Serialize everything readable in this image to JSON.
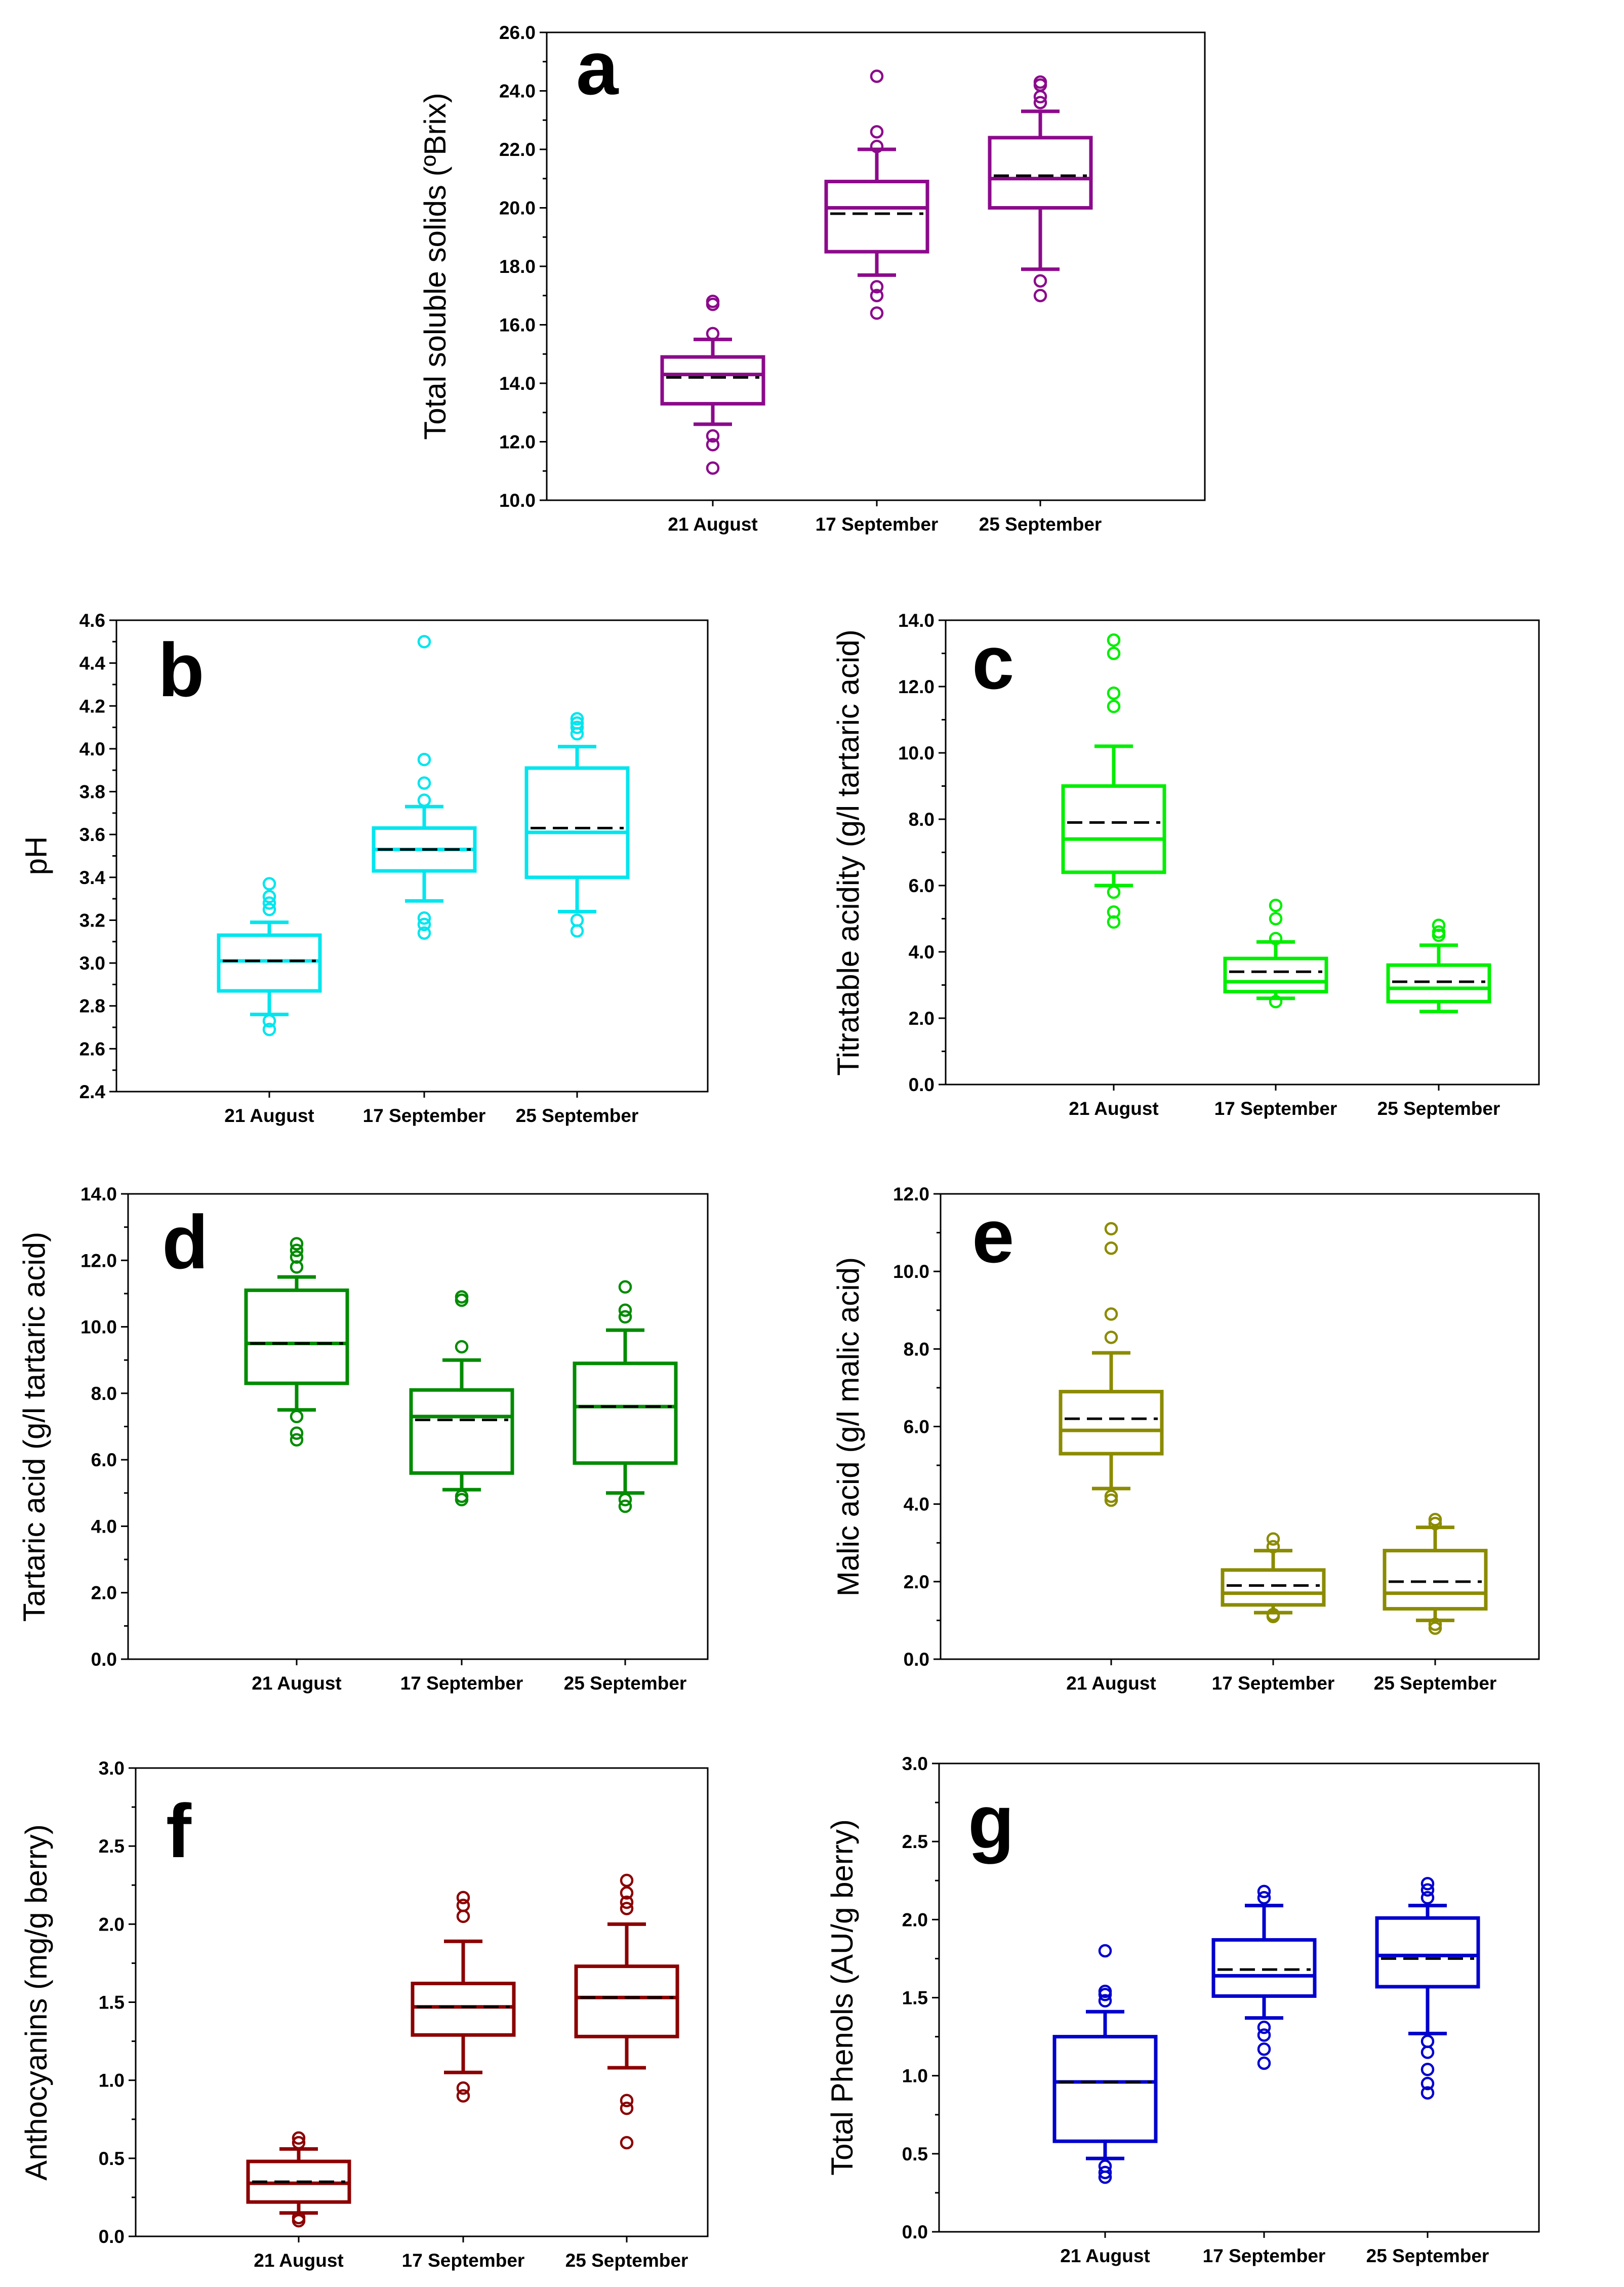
{
  "chart_data": [
    {
      "type": "box",
      "panel": "a",
      "ylabel": "Total soluble solids (ºBrix)",
      "color": "#8B0A8B",
      "ylim": [
        10,
        26
      ],
      "yticks": [
        "10.0",
        "12.0",
        "14.0",
        "16.0",
        "18.0",
        "20.0",
        "22.0",
        "24.0",
        "26.0"
      ],
      "categories": [
        "21 August",
        "17 September",
        "25 September"
      ],
      "boxes": [
        {
          "whisker_low": 12.6,
          "q1": 13.3,
          "median": 14.3,
          "mean": 14.2,
          "q3": 14.9,
          "whisker_high": 15.5,
          "outliers": [
            11.1,
            11.9,
            12.2,
            15.7,
            16.7,
            16.8
          ]
        },
        {
          "whisker_low": 17.7,
          "q1": 18.5,
          "median": 20.0,
          "mean": 19.8,
          "q3": 20.9,
          "whisker_high": 22.0,
          "outliers": [
            16.4,
            17.0,
            17.3,
            22.1,
            22.6,
            24.5
          ]
        },
        {
          "whisker_low": 17.9,
          "q1": 20.0,
          "median": 21.0,
          "mean": 21.1,
          "q3": 22.4,
          "whisker_high": 23.3,
          "outliers": [
            17.0,
            17.5,
            23.6,
            23.8,
            24.2,
            24.3
          ]
        }
      ]
    },
    {
      "type": "box",
      "panel": "b",
      "ylabel": "pH",
      "color": "#00E5EE",
      "ylim": [
        2.4,
        4.6
      ],
      "yticks": [
        "2.4",
        "2.6",
        "2.8",
        "3.0",
        "3.2",
        "3.4",
        "3.6",
        "3.8",
        "4.0",
        "4.2",
        "4.4",
        "4.6"
      ],
      "categories": [
        "21 August",
        "17 September",
        "25 September"
      ],
      "boxes": [
        {
          "whisker_low": 2.76,
          "q1": 2.87,
          "median": 3.01,
          "mean": 3.01,
          "q3": 3.13,
          "whisker_high": 3.19,
          "outliers": [
            2.69,
            2.73,
            3.25,
            3.28,
            3.31,
            3.37
          ]
        },
        {
          "whisker_low": 3.29,
          "q1": 3.43,
          "median": 3.53,
          "mean": 3.53,
          "q3": 3.63,
          "whisker_high": 3.73,
          "outliers": [
            3.14,
            3.18,
            3.21,
            3.76,
            3.84,
            3.95,
            4.5
          ]
        },
        {
          "whisker_low": 3.24,
          "q1": 3.4,
          "median": 3.61,
          "mean": 3.63,
          "q3": 3.91,
          "whisker_high": 4.01,
          "outliers": [
            3.15,
            3.2,
            4.07,
            4.1,
            4.12,
            4.14
          ]
        }
      ]
    },
    {
      "type": "box",
      "panel": "c",
      "ylabel": "Titratable acidity (g/l tartaric acid)",
      "color": "#00EE00",
      "ylim": [
        0,
        14
      ],
      "yticks": [
        "0.0",
        "2.0",
        "4.0",
        "6.0",
        "8.0",
        "10.0",
        "12.0",
        "14.0"
      ],
      "categories": [
        "21 August",
        "17 September",
        "25 September"
      ],
      "boxes": [
        {
          "whisker_low": 6.0,
          "q1": 6.4,
          "median": 7.4,
          "mean": 7.9,
          "q3": 9.0,
          "whisker_high": 10.2,
          "outliers": [
            4.9,
            5.2,
            5.8,
            11.4,
            11.8,
            13.0,
            13.4
          ]
        },
        {
          "whisker_low": 2.6,
          "q1": 2.8,
          "median": 3.1,
          "mean": 3.4,
          "q3": 3.8,
          "whisker_high": 4.3,
          "outliers": [
            2.5,
            4.4,
            5.0,
            5.4
          ]
        },
        {
          "whisker_low": 2.2,
          "q1": 2.5,
          "median": 2.9,
          "mean": 3.1,
          "q3": 3.6,
          "whisker_high": 4.2,
          "outliers": [
            4.5,
            4.6,
            4.8
          ]
        }
      ]
    },
    {
      "type": "box",
      "panel": "d",
      "ylabel": "Tartaric acid (g/l tartaric acid)",
      "color": "#008B00",
      "ylim": [
        0,
        14
      ],
      "yticks": [
        "0.0",
        "2.0",
        "4.0",
        "6.0",
        "8.0",
        "10.0",
        "12.0",
        "14.0"
      ],
      "categories": [
        "21 August",
        "17 September",
        "25 September"
      ],
      "boxes": [
        {
          "whisker_low": 7.5,
          "q1": 8.3,
          "median": 9.5,
          "mean": 9.5,
          "q3": 11.1,
          "whisker_high": 11.5,
          "outliers": [
            6.6,
            6.8,
            7.3,
            11.8,
            12.1,
            12.3,
            12.5
          ]
        },
        {
          "whisker_low": 5.1,
          "q1": 5.6,
          "median": 7.3,
          "mean": 7.2,
          "q3": 8.1,
          "whisker_high": 9.0,
          "outliers": [
            4.8,
            4.9,
            9.4,
            10.8,
            10.9
          ]
        },
        {
          "whisker_low": 5.0,
          "q1": 5.9,
          "median": 7.6,
          "mean": 7.6,
          "q3": 8.9,
          "whisker_high": 9.9,
          "outliers": [
            4.6,
            4.8,
            10.3,
            10.5,
            11.2
          ]
        }
      ]
    },
    {
      "type": "box",
      "panel": "e",
      "ylabel": "Malic acid (g/l malic acid)",
      "color": "#8B8B00",
      "ylim": [
        0,
        12
      ],
      "yticks": [
        "0.0",
        "2.0",
        "4.0",
        "6.0",
        "8.0",
        "10.0",
        "12.0"
      ],
      "categories": [
        "21 August",
        "17 September",
        "25 September"
      ],
      "boxes": [
        {
          "whisker_low": 4.4,
          "q1": 5.3,
          "median": 5.9,
          "mean": 6.2,
          "q3": 6.9,
          "whisker_high": 7.9,
          "outliers": [
            4.1,
            4.2,
            8.3,
            8.9,
            10.6,
            11.1
          ]
        },
        {
          "whisker_low": 1.2,
          "q1": 1.4,
          "median": 1.7,
          "mean": 1.9,
          "q3": 2.3,
          "whisker_high": 2.8,
          "outliers": [
            1.1,
            1.15,
            2.9,
            3.1
          ]
        },
        {
          "whisker_low": 1.0,
          "q1": 1.3,
          "median": 1.7,
          "mean": 2.0,
          "q3": 2.8,
          "whisker_high": 3.4,
          "outliers": [
            0.8,
            0.9,
            3.5,
            3.6
          ]
        }
      ]
    },
    {
      "type": "box",
      "panel": "f",
      "ylabel": "Anthocyanins (mg/g berry)",
      "color": "#8B0000",
      "ylim": [
        0,
        3.0
      ],
      "yticks": [
        "0.0",
        "0.5",
        "1.0",
        "1.5",
        "2.0",
        "2.5",
        "3.0"
      ],
      "categories": [
        "21 August",
        "17 September",
        "25 September"
      ],
      "boxes": [
        {
          "whisker_low": 0.15,
          "q1": 0.22,
          "median": 0.34,
          "mean": 0.35,
          "q3": 0.48,
          "whisker_high": 0.56,
          "outliers": [
            0.1,
            0.12,
            0.6,
            0.63
          ]
        },
        {
          "whisker_low": 1.05,
          "q1": 1.29,
          "median": 1.47,
          "mean": 1.47,
          "q3": 1.62,
          "whisker_high": 1.89,
          "outliers": [
            0.9,
            0.95,
            2.05,
            2.12,
            2.17
          ]
        },
        {
          "whisker_low": 1.08,
          "q1": 1.28,
          "median": 1.53,
          "mean": 1.53,
          "q3": 1.73,
          "whisker_high": 2.0,
          "outliers": [
            0.6,
            0.82,
            0.87,
            2.1,
            2.14,
            2.2,
            2.28
          ]
        }
      ]
    },
    {
      "type": "box",
      "panel": "g",
      "ylabel": "Total Phenols (AU/g berry)",
      "color": "#0000CD",
      "ylim": [
        0,
        3.0
      ],
      "yticks": [
        "0.0",
        "0.5",
        "1.0",
        "1.5",
        "2.0",
        "2.5",
        "3.0"
      ],
      "categories": [
        "21 August",
        "17 September",
        "25 September"
      ],
      "boxes": [
        {
          "whisker_low": 0.47,
          "q1": 0.58,
          "median": 0.96,
          "mean": 0.96,
          "q3": 1.25,
          "whisker_high": 1.41,
          "outliers": [
            0.35,
            0.38,
            0.42,
            1.48,
            1.52,
            1.54,
            1.8
          ]
        },
        {
          "whisker_low": 1.37,
          "q1": 1.51,
          "median": 1.64,
          "mean": 1.68,
          "q3": 1.87,
          "whisker_high": 2.09,
          "outliers": [
            1.08,
            1.17,
            1.26,
            1.31,
            2.14,
            2.18
          ]
        },
        {
          "whisker_low": 1.27,
          "q1": 1.57,
          "median": 1.77,
          "mean": 1.75,
          "q3": 2.01,
          "whisker_high": 2.09,
          "outliers": [
            0.89,
            0.95,
            1.04,
            1.15,
            1.22,
            2.14,
            2.19,
            2.23
          ]
        }
      ]
    }
  ]
}
